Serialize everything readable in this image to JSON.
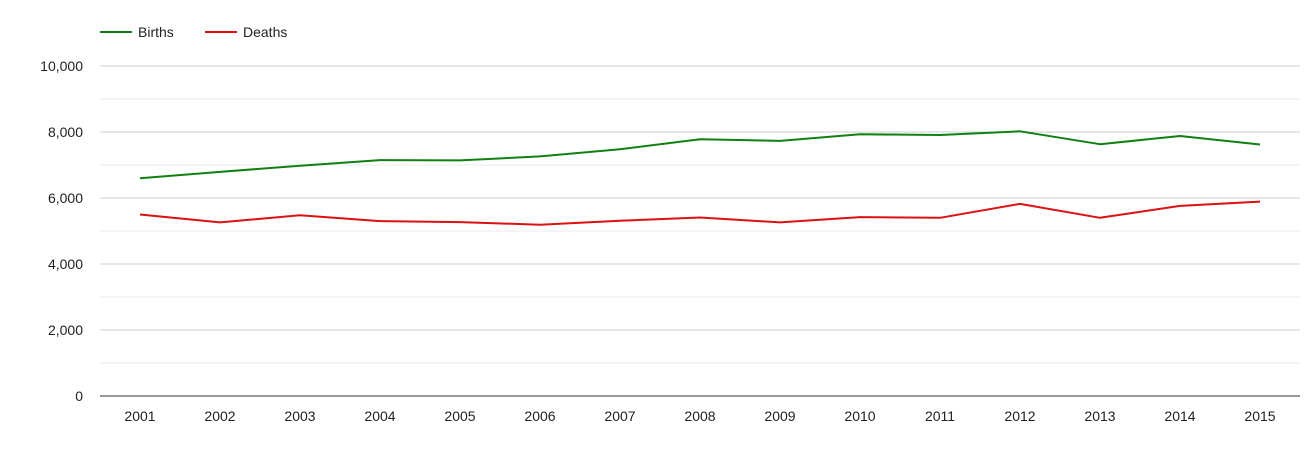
{
  "chart_data": {
    "type": "line",
    "categories": [
      "2001",
      "2002",
      "2003",
      "2004",
      "2005",
      "2006",
      "2007",
      "2008",
      "2009",
      "2010",
      "2011",
      "2012",
      "2013",
      "2014",
      "2015"
    ],
    "series": [
      {
        "name": "Births",
        "color": "#108010",
        "values": [
          6600,
          6790,
          6980,
          7150,
          7140,
          7260,
          7480,
          7780,
          7730,
          7930,
          7910,
          8020,
          7630,
          7880,
          7620
        ]
      },
      {
        "name": "Deaths",
        "color": "#dd1111",
        "values": [
          5500,
          5260,
          5480,
          5300,
          5270,
          5190,
          5310,
          5410,
          5260,
          5420,
          5400,
          5820,
          5400,
          5760,
          5890
        ]
      }
    ],
    "ylim": [
      0,
      10000
    ],
    "yticks": [
      {
        "value": 0,
        "label": "0"
      },
      {
        "value": 2000,
        "label": "2,000"
      },
      {
        "value": 4000,
        "label": "4,000"
      },
      {
        "value": 6000,
        "label": "6,000"
      },
      {
        "value": 8000,
        "label": "8,000"
      },
      {
        "value": 10000,
        "label": "10,000"
      }
    ],
    "minor_gridlines": [
      1000,
      3000,
      5000,
      7000,
      9000
    ],
    "grid": true,
    "legend_position": "top-left"
  }
}
